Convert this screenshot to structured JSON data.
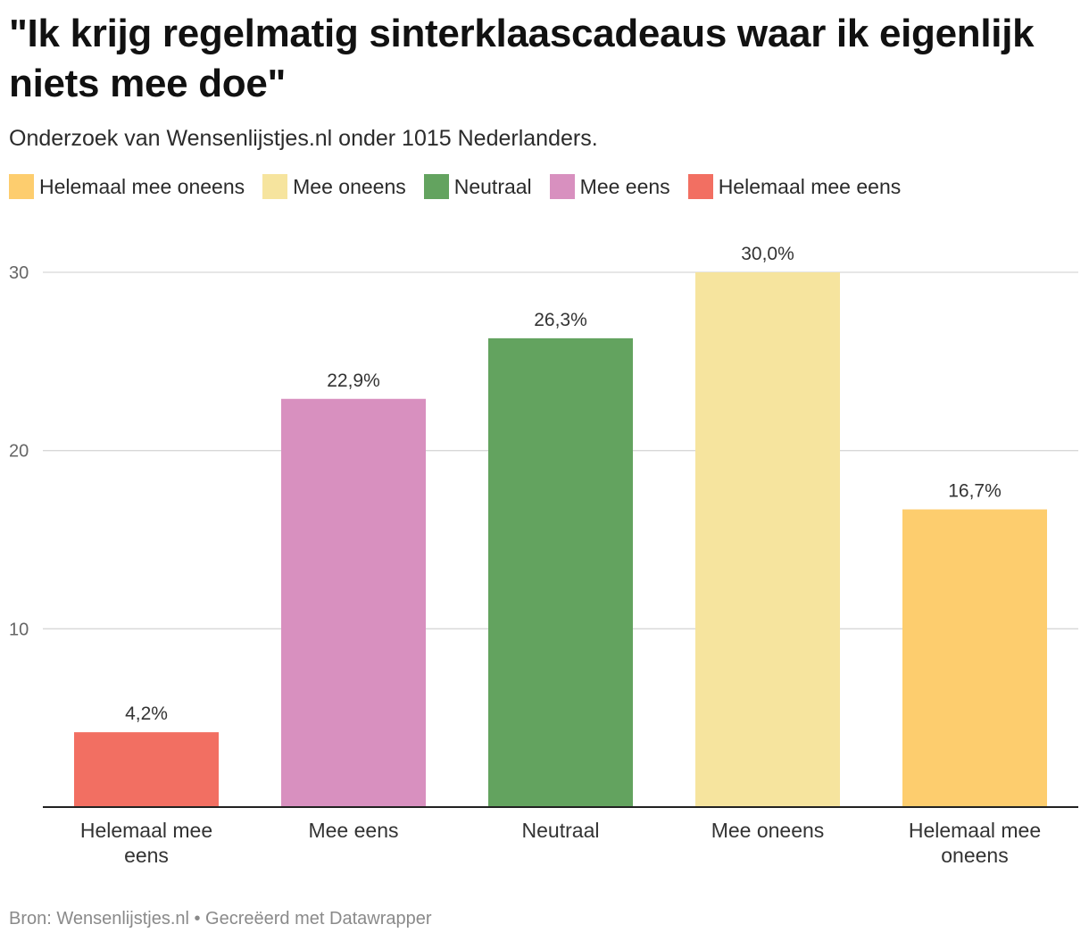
{
  "header": {
    "title": "\"Ik krijg regelmatig sinterklaascadeaus waar ik eigenlijk niets mee doe\"",
    "subtitle": "Onderzoek van Wensenlijstjes.nl onder 1015 Nederlanders."
  },
  "legend": {
    "items": [
      {
        "label": "Helemaal mee oneens",
        "color": "#fdcd6e"
      },
      {
        "label": "Mee oneens",
        "color": "#f6e49e"
      },
      {
        "label": "Neutraal",
        "color": "#63a35f"
      },
      {
        "label": "Mee eens",
        "color": "#d890bf"
      },
      {
        "label": "Helemaal mee eens",
        "color": "#f26f62"
      }
    ]
  },
  "chart_data": {
    "type": "bar",
    "categories": [
      "Helemaal mee eens",
      "Mee eens",
      "Neutraal",
      "Mee oneens",
      "Helemaal mee oneens"
    ],
    "category_lines": [
      [
        "Helemaal mee",
        "eens"
      ],
      [
        "Mee eens"
      ],
      [
        "Neutraal"
      ],
      [
        "Mee oneens"
      ],
      [
        "Helemaal mee",
        "oneens"
      ]
    ],
    "values": [
      4.2,
      22.9,
      26.3,
      30.0,
      16.7
    ],
    "value_labels": [
      "4,2%",
      "22,9%",
      "26,3%",
      "30,0%",
      "16,7%"
    ],
    "colors": [
      "#f26f62",
      "#d890bf",
      "#63a35f",
      "#f6e49e",
      "#fdcd6e"
    ],
    "ylim": [
      0,
      30
    ],
    "yticks": [
      10,
      20,
      30
    ],
    "grid": true,
    "legend_position": "top-left"
  },
  "footer": {
    "text": "Bron: Wensenlijstjes.nl • Gecreëerd met Datawrapper"
  }
}
